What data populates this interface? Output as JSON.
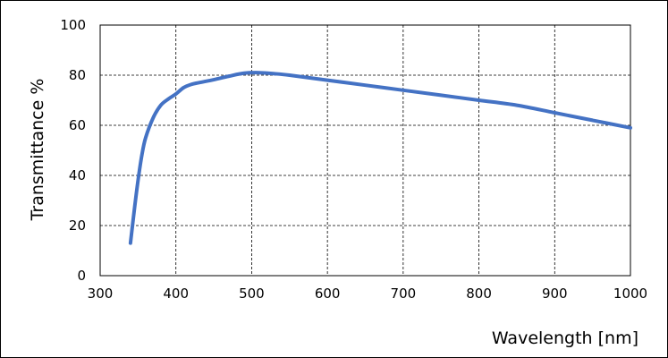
{
  "chart_data": {
    "type": "line",
    "title": "",
    "xlabel": "Wavelength [nm]",
    "ylabel": "Transmittance %",
    "xlim": [
      300,
      1000
    ],
    "ylim": [
      0,
      100
    ],
    "x_ticks": [
      300,
      400,
      500,
      600,
      700,
      800,
      900,
      1000
    ],
    "y_ticks": [
      0,
      20,
      40,
      60,
      80,
      100
    ],
    "grid": true,
    "grid_style": "dashed",
    "legend": "none",
    "line_color": "#4472c4",
    "series": [
      {
        "x": [
          340,
          345,
          350,
          355,
          360,
          370,
          380,
          390,
          400,
          410,
          420,
          430,
          450,
          470,
          490,
          510,
          530,
          550,
          600,
          650,
          700,
          750,
          800,
          850,
          900,
          950,
          1000
        ],
        "y": [
          13,
          26,
          38,
          48,
          55,
          63,
          68,
          70.5,
          72.5,
          75,
          76.3,
          77,
          78.2,
          79.6,
          80.8,
          81,
          80.6,
          80,
          78,
          76,
          74,
          72,
          70,
          68,
          65,
          62,
          59
        ]
      }
    ]
  }
}
